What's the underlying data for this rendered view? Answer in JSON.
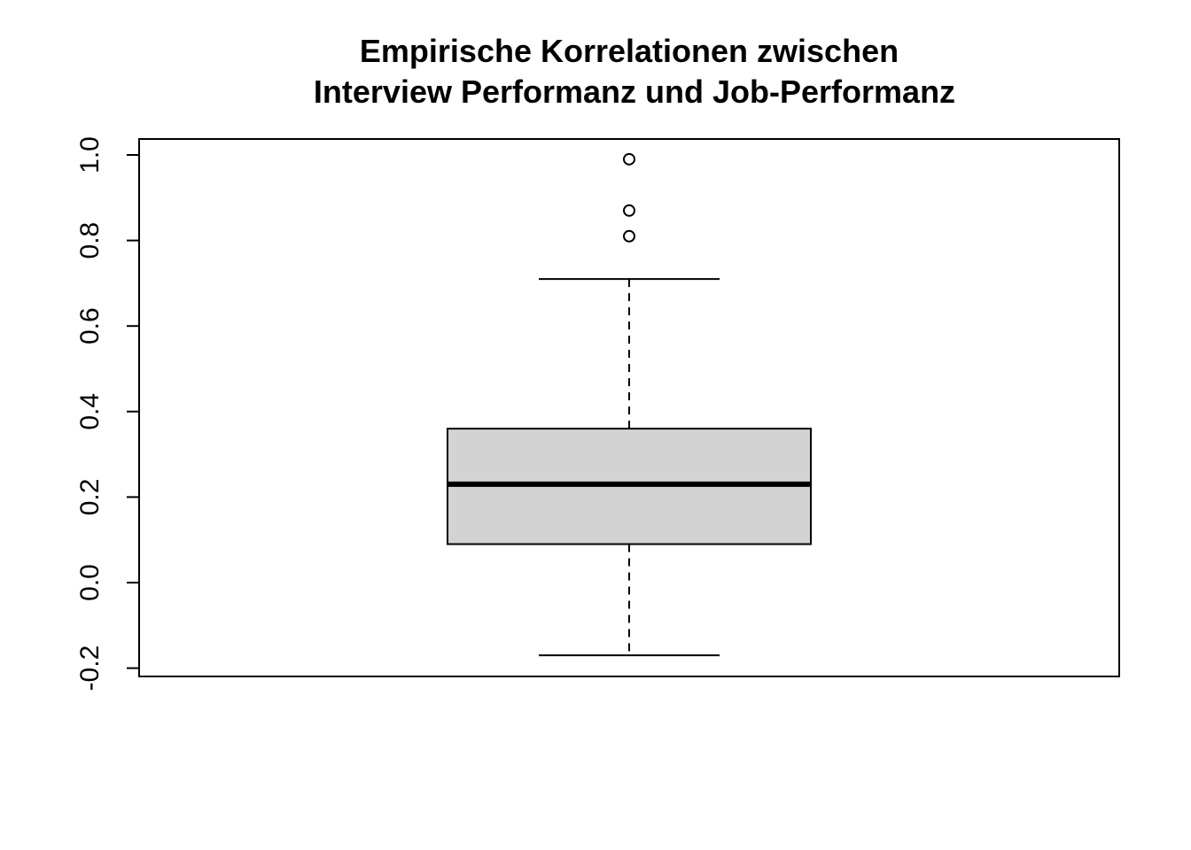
{
  "chart_data": {
    "type": "boxplot",
    "title": "Empirische Korrelationen zwischen\nInterview Performanz und Job-Performanz",
    "title_lines": [
      "Empirische Korrelationen zwischen",
      "Interview Performanz und Job-Performanz"
    ],
    "xlabel": "",
    "ylabel": "",
    "ylim": [
      -0.21,
      1.04
    ],
    "y_ticks": [
      -0.2,
      0.0,
      0.2,
      0.4,
      0.6,
      0.8,
      1.0
    ],
    "y_tick_labels": [
      "-0.2",
      "0.0",
      "0.2",
      "0.4",
      "0.6",
      "0.8",
      "1.0"
    ],
    "grid": false,
    "box": {
      "lower_whisker": -0.17,
      "q1": 0.09,
      "median": 0.23,
      "q3": 0.36,
      "upper_whisker": 0.71,
      "outliers": [
        0.81,
        0.87,
        0.99
      ]
    },
    "colors": {
      "box_fill": "#d3d3d3",
      "stroke": "#000000"
    }
  }
}
